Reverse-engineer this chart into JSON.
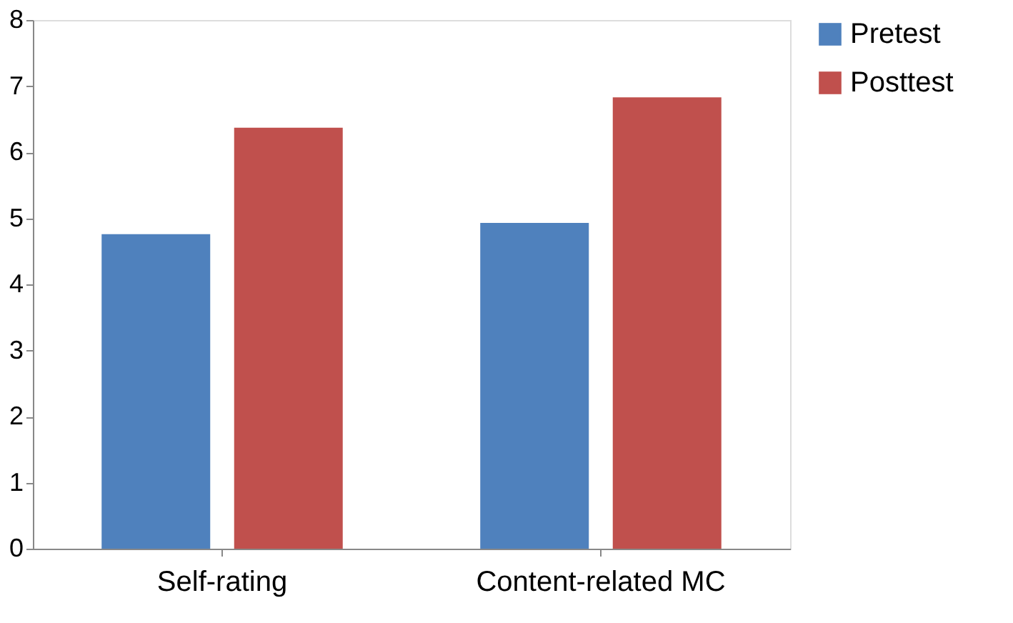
{
  "chart_data": {
    "type": "bar",
    "categories": [
      "Self-rating",
      "Content-related MC"
    ],
    "series": [
      {
        "name": "Pretest",
        "color": "#4f81bd",
        "values": [
          4.76,
          4.93
        ]
      },
      {
        "name": "Posttest",
        "color": "#c0504d",
        "values": [
          6.37,
          6.83
        ]
      }
    ],
    "ylim": [
      0,
      8
    ],
    "yticks": [
      0,
      1,
      2,
      3,
      4,
      5,
      6,
      7,
      8
    ],
    "grid": false,
    "legend": "right"
  }
}
